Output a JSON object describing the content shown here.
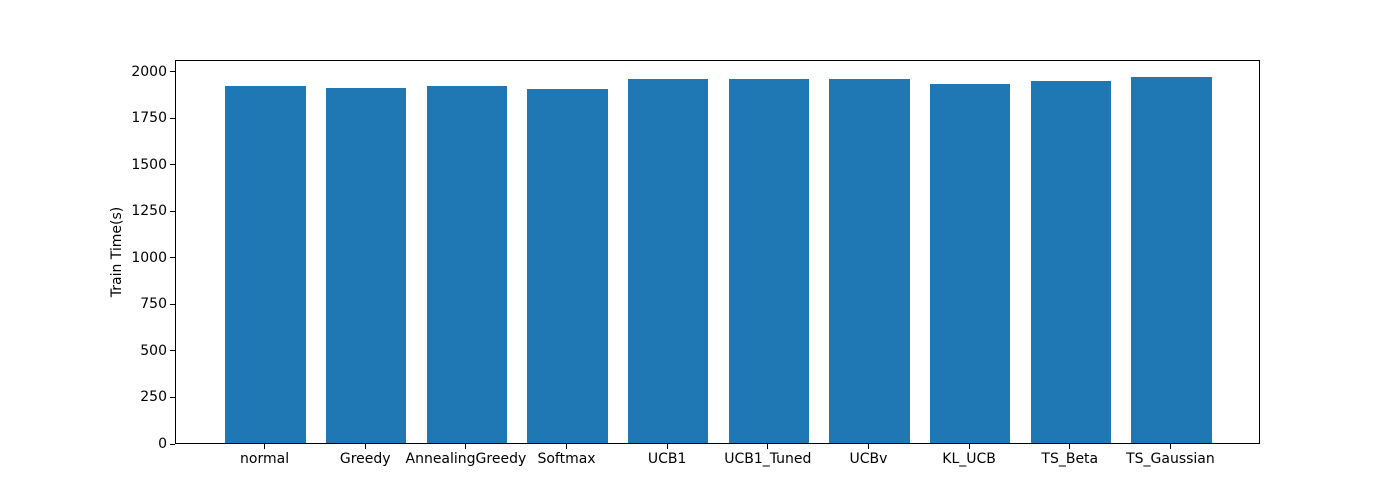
{
  "chart_data": {
    "type": "bar",
    "title": "",
    "xlabel": "",
    "ylabel": "Train Time(s)",
    "categories": [
      "normal",
      "Greedy",
      "AnnealingGreedy",
      "Softmax",
      "UCB1",
      "UCB1_Tuned",
      "UCBv",
      "KL_UCB",
      "TS_Beta",
      "TS_Gaussian"
    ],
    "values": [
      1918,
      1909,
      1919,
      1901,
      1956,
      1953,
      1955,
      1930,
      1947,
      1965
    ],
    "bar_color": "#1f77b4",
    "bar_width": 0.8,
    "xlim": [
      -0.89,
      9.89
    ],
    "ylim": [
      0,
      2063
    ],
    "yticks": [
      0,
      250,
      500,
      750,
      1000,
      1250,
      1500,
      1750,
      2000
    ],
    "grid": false,
    "legend": "none",
    "background_color": "#ffffff",
    "spine_color": "#000000"
  }
}
